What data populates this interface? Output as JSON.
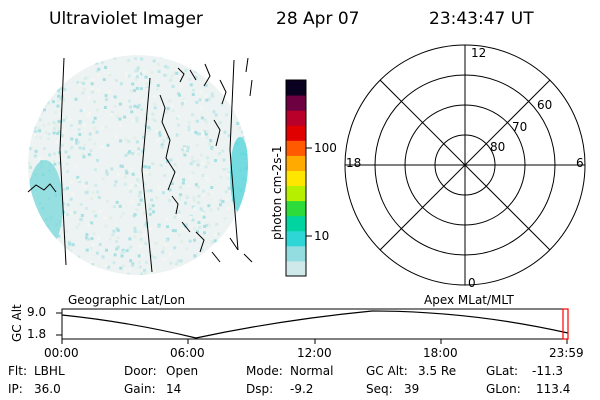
{
  "header": {
    "instrument": "Ultraviolet Imager",
    "date": "28 Apr 07",
    "time": "23:43:47 UT"
  },
  "colorbar": {
    "unit_label": "photon cm-2s-1",
    "tick_100": "100",
    "tick_10": "10",
    "colors": [
      "#cfe8ea",
      "#93dcdf",
      "#2fd6d6",
      "#00d4a0",
      "#2ddc3a",
      "#b6f000",
      "#ffe600",
      "#ffaa00",
      "#ff5a00",
      "#e00000",
      "#b8002a",
      "#6d0040",
      "#0a0020"
    ]
  },
  "geo_panel": {
    "caption": "Geographic Lat/Lon"
  },
  "polar_panel": {
    "caption": "Apex MLat/MLT",
    "mlt_top": "12",
    "mlt_left": "18",
    "mlt_right": "6",
    "mlt_bottom": "0",
    "lat_60": "60",
    "lat_70": "70",
    "lat_80": "80"
  },
  "timeline": {
    "axis_label": "GC Alt",
    "y_top": "9.0",
    "y_bottom": "1.8",
    "ticks": [
      "00:00",
      "06:00",
      "12:00",
      "18:00",
      "23:59"
    ],
    "current_marker_color": "#ff0000"
  },
  "params": {
    "flt_label": "Flt:",
    "flt_value": "LBHL",
    "ip_label": "IP:",
    "ip_value": "36.0",
    "door_label": "Door:",
    "door_value": "Open",
    "gain_label": "Gain:",
    "gain_value": "14",
    "mode_label": "Mode:",
    "mode_value": "Normal",
    "dsp_label": "Dsp:",
    "dsp_value": "-9.2",
    "gcalt_label": "GC Alt:",
    "gcalt_value": "3.5 Re",
    "seq_label": "Seq:",
    "seq_value": "39",
    "glat_label": "GLat:",
    "glat_value": "-11.3",
    "glon_label": "GLon:",
    "glon_value": "113.4"
  }
}
